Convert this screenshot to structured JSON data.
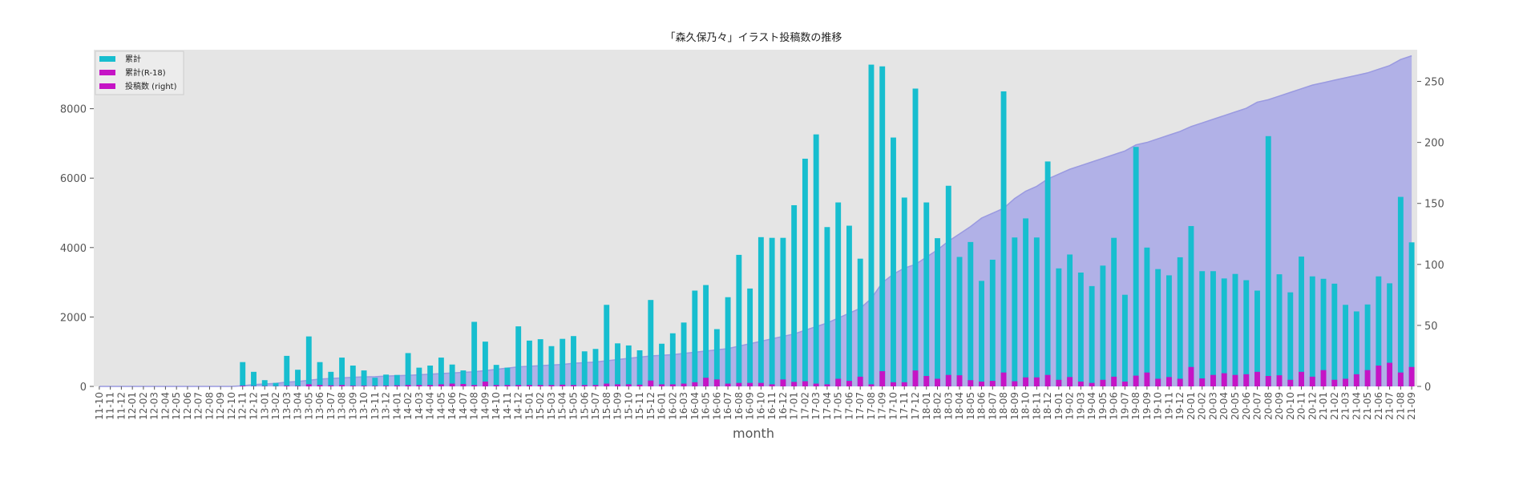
{
  "chart_data": {
    "type": "bar",
    "title": "「森久保乃々」イラスト投稿数の推移",
    "xlabel": "month",
    "ylabel": "",
    "ylim": [
      0,
      9700
    ],
    "y2lim": [
      0,
      276
    ],
    "yticks": [
      0,
      2000,
      4000,
      6000,
      8000
    ],
    "y2ticks": [
      0,
      50,
      100,
      150,
      200,
      250
    ],
    "grid": false,
    "legend_position": "top-left",
    "colors": {
      "cumulative": "#17becf",
      "cumulative_r18": "#c514c5",
      "posts": "#c514c5",
      "area": "#a8a8e8",
      "plot_bg": "#e5e5e5"
    },
    "categories": [
      "11-10",
      "11-11",
      "11-12",
      "12-01",
      "12-02",
      "12-03",
      "12-04",
      "12-05",
      "12-06",
      "12-07",
      "12-08",
      "12-09",
      "12-10",
      "12-11",
      "12-12",
      "13-01",
      "13-02",
      "13-03",
      "13-04",
      "13-05",
      "13-06",
      "13-07",
      "13-08",
      "13-09",
      "13-10",
      "13-11",
      "13-12",
      "14-01",
      "14-02",
      "14-03",
      "14-04",
      "14-05",
      "14-06",
      "14-07",
      "14-08",
      "14-09",
      "14-10",
      "14-11",
      "14-12",
      "15-01",
      "15-02",
      "15-03",
      "15-04",
      "15-05",
      "15-06",
      "15-07",
      "15-08",
      "15-09",
      "15-10",
      "15-11",
      "15-12",
      "16-01",
      "16-02",
      "16-03",
      "16-04",
      "16-05",
      "16-06",
      "16-07",
      "16-08",
      "16-09",
      "16-10",
      "16-11",
      "16-12",
      "17-01",
      "17-02",
      "17-03",
      "17-04",
      "17-05",
      "17-06",
      "17-07",
      "17-08",
      "17-09",
      "17-10",
      "17-11",
      "17-12",
      "18-01",
      "18-02",
      "18-03",
      "18-04",
      "18-05",
      "18-06",
      "18-07",
      "18-08",
      "18-09",
      "18-10",
      "18-11",
      "18-12",
      "19-01",
      "19-02",
      "19-03",
      "19-04",
      "19-05",
      "19-06",
      "19-07",
      "19-08",
      "19-09",
      "19-10",
      "19-11",
      "19-12",
      "20-01",
      "20-02",
      "20-03",
      "20-04",
      "20-05",
      "20-06",
      "20-07",
      "20-08",
      "20-09",
      "20-10",
      "20-11",
      "20-12",
      "21-01",
      "21-02",
      "21-03",
      "21-04",
      "21-05",
      "21-06",
      "21-07",
      "21-08",
      "21-09"
    ],
    "series": [
      {
        "name": "累計",
        "axis": "left",
        "values": [
          0,
          0,
          0,
          0,
          0,
          0,
          0,
          0,
          0,
          0,
          0,
          0,
          0,
          700,
          420,
          180,
          100,
          880,
          480,
          1440,
          700,
          420,
          830,
          600,
          460,
          250,
          340,
          330,
          960,
          540,
          600,
          830,
          630,
          460,
          1860,
          1290,
          620,
          540,
          1730,
          1320,
          1360,
          1160,
          1370,
          1450,
          1010,
          1080,
          2350,
          1240,
          1180,
          1040,
          2490,
          1230,
          1530,
          1840,
          2760,
          2920,
          1650,
          2570,
          3790,
          2820,
          4300,
          4280,
          4280,
          5220,
          6560,
          7260,
          4590,
          5300,
          4630,
          3680,
          9270,
          9220,
          7170,
          5440,
          8580,
          5300,
          4270,
          5780,
          3730,
          4160,
          3040,
          3650,
          8500,
          4290,
          4840,
          4290,
          6480,
          3400,
          3800,
          3280,
          2890,
          3480,
          4280,
          2640,
          6900,
          4000,
          3380,
          3200,
          3720,
          4620,
          3320,
          3320,
          3110,
          3240,
          3060,
          2760,
          7210,
          3230,
          2710,
          3740,
          3170,
          3100,
          2960,
          2350,
          2160,
          2360,
          3170,
          2970,
          5460,
          4150
        ]
      },
      {
        "name": "累計(R-18)",
        "axis": "left",
        "values": [
          0,
          0,
          0,
          0,
          0,
          0,
          0,
          0,
          0,
          0,
          0,
          0,
          0,
          20,
          10,
          10,
          5,
          20,
          15,
          60,
          40,
          30,
          40,
          20,
          20,
          15,
          20,
          30,
          40,
          40,
          40,
          60,
          80,
          70,
          40,
          140,
          40,
          40,
          40,
          40,
          40,
          40,
          50,
          40,
          40,
          40,
          80,
          60,
          60,
          50,
          170,
          60,
          60,
          80,
          120,
          250,
          200,
          80,
          100,
          100,
          100,
          60,
          200,
          130,
          150,
          80,
          60,
          220,
          160,
          280,
          60,
          440,
          120,
          120,
          460,
          300,
          220,
          330,
          320,
          180,
          140,
          160,
          400,
          150,
          260,
          260,
          330,
          190,
          270,
          140,
          100,
          190,
          280,
          140,
          310,
          400,
          220,
          270,
          220,
          560,
          230,
          330,
          380,
          330,
          350,
          420,
          300,
          320,
          190,
          420,
          280,
          470,
          190,
          220,
          350,
          470,
          600,
          680,
          400,
          560
        ]
      },
      {
        "name": "投稿数 (right)",
        "axis": "right",
        "type": "area",
        "values": [
          0,
          0,
          0,
          0,
          0,
          0,
          0,
          0,
          0,
          0,
          0,
          0,
          0,
          0.5,
          1.5,
          2,
          2.5,
          3.5,
          4,
          5,
          6,
          6.5,
          7,
          7.5,
          7.8,
          8,
          8.5,
          8.8,
          9,
          9.5,
          10,
          10.5,
          11,
          11.5,
          12,
          13,
          14,
          15,
          16,
          16.5,
          17,
          17.5,
          18,
          19,
          19.5,
          20,
          21,
          22,
          23,
          24,
          25,
          25.5,
          26,
          27,
          28,
          29,
          30,
          31,
          33,
          35,
          37,
          39,
          41,
          43,
          46,
          49,
          52,
          56,
          60,
          64,
          72,
          85,
          92,
          97,
          100,
          106,
          112,
          119,
          125,
          131,
          138,
          142,
          146,
          154,
          160,
          164,
          170,
          174,
          178,
          181,
          184,
          187,
          190,
          193,
          198,
          200,
          203,
          206,
          209,
          213,
          216,
          219,
          222,
          225,
          228,
          233,
          235,
          238,
          241,
          244,
          247,
          249,
          251,
          253,
          255,
          257,
          260,
          263,
          268,
          271
        ]
      }
    ]
  }
}
